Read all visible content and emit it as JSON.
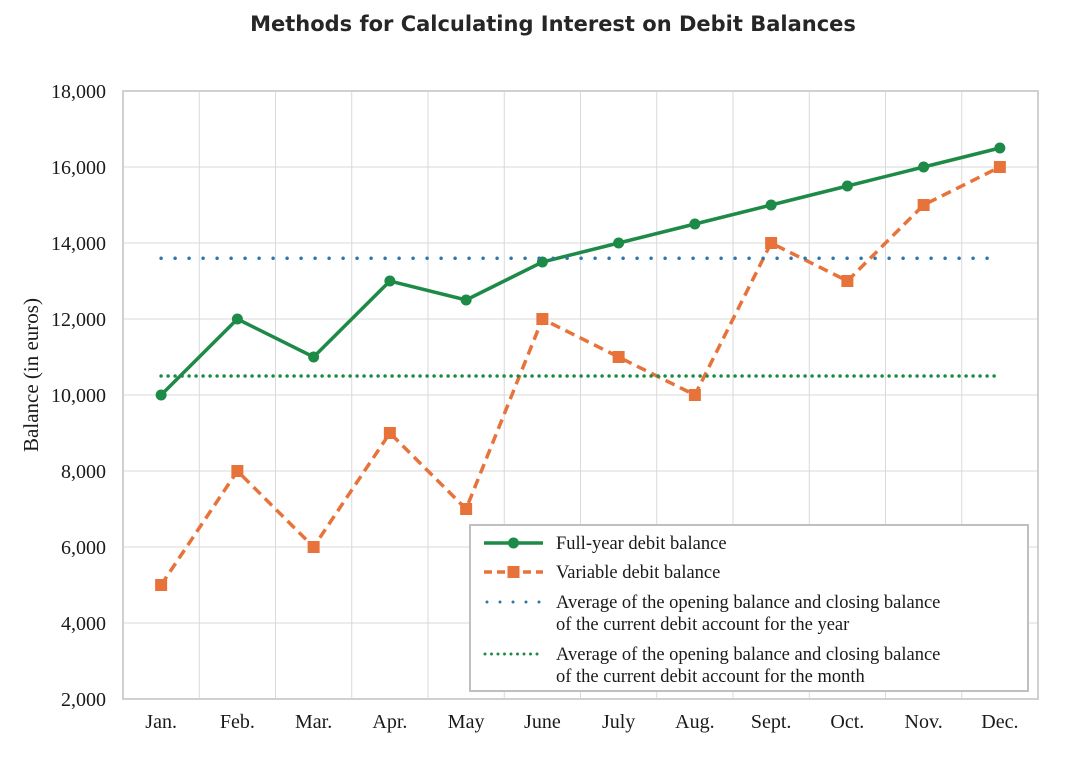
{
  "chart_data": {
    "type": "line",
    "title": "Methods for Calculating Interest on Debit Balances",
    "xlabel": "",
    "ylabel": "Balance (in euros)",
    "ylim": [
      2000,
      18000
    ],
    "yticks": [
      2000,
      4000,
      6000,
      8000,
      10000,
      12000,
      14000,
      16000,
      18000
    ],
    "ytick_labels": [
      "2,000",
      "4,000",
      "6,000",
      "8,000",
      "10,000",
      "12,000",
      "14,000",
      "16,000",
      "18,000"
    ],
    "categories": [
      "Jan.",
      "Feb.",
      "Mar.",
      "Apr.",
      "May",
      "June",
      "July",
      "Aug.",
      "Sept.",
      "Oct.",
      "Nov.",
      "Dec."
    ],
    "grid": true,
    "legend_position": "bottom-right",
    "series": [
      {
        "name": "Full-year debit balance",
        "style": "solid",
        "marker": "circle",
        "color": "#1e8a47",
        "values": [
          10000,
          12000,
          11000,
          13000,
          12500,
          13500,
          14000,
          14500,
          15000,
          15500,
          16000,
          16500
        ]
      },
      {
        "name": "Variable debit balance",
        "style": "dashed",
        "marker": "square",
        "color": "#e8733a",
        "values": [
          5000,
          8000,
          6000,
          9000,
          7000,
          12000,
          11000,
          10000,
          14000,
          13000,
          15000,
          16000
        ]
      },
      {
        "name": "Average of the opening balance and closing balance of the current debit account for the year",
        "legend_lines": [
          "Average of the opening balance and closing balance",
          "of the current debit account for the year"
        ],
        "style": "dotted-sparse",
        "marker": "none",
        "color": "#2e75a8",
        "values": [
          13600,
          13600,
          13600,
          13600,
          13600,
          13600,
          13600,
          13600,
          13600,
          13600,
          13600,
          13600
        ]
      },
      {
        "name": "Average of the opening balance and closing balance of the current debit account for the month",
        "legend_lines": [
          "Average of the opening balance and closing balance",
          "of the current debit account for the month"
        ],
        "style": "dotted-dense",
        "marker": "none",
        "color": "#1e8a47",
        "values": [
          10500,
          10500,
          10500,
          10500,
          10500,
          10500,
          10500,
          10500,
          10500,
          10500,
          10500,
          10500
        ]
      }
    ]
  }
}
